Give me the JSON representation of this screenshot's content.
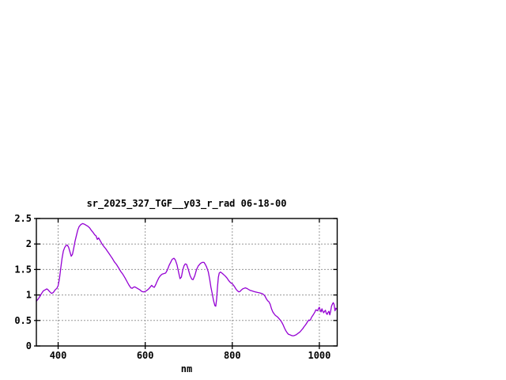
{
  "window": {
    "background": "#ffffff"
  },
  "chart": {
    "line_color": "#9400d3",
    "grid_color": "#989898",
    "border_color": "#000000",
    "text_color": "#000000"
  },
  "chart_data": {
    "type": "line",
    "title": "sr_2025_327_TGF__y03_r_rad 06-18-00",
    "xlabel": "nm",
    "ylabel": "",
    "xlim": [
      350,
      1041
    ],
    "ylim": [
      0,
      2.5
    ],
    "xticks": [
      400,
      600,
      800,
      1000
    ],
    "yticks": [
      0,
      0.5,
      1,
      1.5,
      2,
      2.5
    ],
    "grid": true,
    "legend": "none",
    "series": [
      {
        "name": "sr_2025_327_TGF__y03_r_rad 06-18-00",
        "color": "#9400d3",
        "points": [
          [
            350,
            0.88
          ],
          [
            354,
            0.92
          ],
          [
            358,
            0.97
          ],
          [
            362,
            1.03
          ],
          [
            366,
            1.08
          ],
          [
            370,
            1.1
          ],
          [
            374,
            1.12
          ],
          [
            377,
            1.1
          ],
          [
            381,
            1.06
          ],
          [
            385,
            1.03
          ],
          [
            389,
            1.05
          ],
          [
            393,
            1.1
          ],
          [
            397,
            1.13
          ],
          [
            400,
            1.18
          ],
          [
            403,
            1.32
          ],
          [
            406,
            1.52
          ],
          [
            409,
            1.72
          ],
          [
            412,
            1.86
          ],
          [
            415,
            1.93
          ],
          [
            418,
            1.97
          ],
          [
            421,
            1.98
          ],
          [
            424,
            1.94
          ],
          [
            427,
            1.85
          ],
          [
            430,
            1.76
          ],
          [
            433,
            1.8
          ],
          [
            436,
            1.93
          ],
          [
            439,
            2.06
          ],
          [
            442,
            2.17
          ],
          [
            445,
            2.27
          ],
          [
            448,
            2.34
          ],
          [
            452,
            2.38
          ],
          [
            456,
            2.4
          ],
          [
            460,
            2.39
          ],
          [
            464,
            2.37
          ],
          [
            468,
            2.35
          ],
          [
            472,
            2.32
          ],
          [
            476,
            2.27
          ],
          [
            480,
            2.23
          ],
          [
            484,
            2.18
          ],
          [
            487,
            2.16
          ],
          [
            490,
            2.09
          ],
          [
            493,
            2.12
          ],
          [
            497,
            2.06
          ],
          [
            501,
            2.0
          ],
          [
            505,
            1.95
          ],
          [
            509,
            1.91
          ],
          [
            513,
            1.86
          ],
          [
            517,
            1.81
          ],
          [
            521,
            1.76
          ],
          [
            525,
            1.71
          ],
          [
            529,
            1.65
          ],
          [
            534,
            1.6
          ],
          [
            539,
            1.53
          ],
          [
            544,
            1.46
          ],
          [
            549,
            1.4
          ],
          [
            554,
            1.33
          ],
          [
            559,
            1.25
          ],
          [
            563,
            1.19
          ],
          [
            567,
            1.14
          ],
          [
            570,
            1.13
          ],
          [
            573,
            1.15
          ],
          [
            576,
            1.16
          ],
          [
            580,
            1.14
          ],
          [
            584,
            1.12
          ],
          [
            588,
            1.1
          ],
          [
            592,
            1.07
          ],
          [
            596,
            1.06
          ],
          [
            600,
            1.07
          ],
          [
            604,
            1.09
          ],
          [
            608,
            1.12
          ],
          [
            612,
            1.16
          ],
          [
            615,
            1.19
          ],
          [
            618,
            1.16
          ],
          [
            621,
            1.15
          ],
          [
            624,
            1.2
          ],
          [
            627,
            1.26
          ],
          [
            631,
            1.33
          ],
          [
            635,
            1.38
          ],
          [
            639,
            1.41
          ],
          [
            643,
            1.42
          ],
          [
            647,
            1.43
          ],
          [
            651,
            1.49
          ],
          [
            655,
            1.58
          ],
          [
            659,
            1.65
          ],
          [
            662,
            1.7
          ],
          [
            666,
            1.72
          ],
          [
            669,
            1.69
          ],
          [
            673,
            1.59
          ],
          [
            677,
            1.43
          ],
          [
            680,
            1.32
          ],
          [
            683,
            1.35
          ],
          [
            686,
            1.48
          ],
          [
            689,
            1.57
          ],
          [
            692,
            1.61
          ],
          [
            695,
            1.6
          ],
          [
            699,
            1.5
          ],
          [
            703,
            1.38
          ],
          [
            707,
            1.31
          ],
          [
            710,
            1.3
          ],
          [
            714,
            1.38
          ],
          [
            718,
            1.5
          ],
          [
            722,
            1.57
          ],
          [
            727,
            1.62
          ],
          [
            731,
            1.64
          ],
          [
            735,
            1.64
          ],
          [
            738,
            1.6
          ],
          [
            741,
            1.55
          ],
          [
            745,
            1.45
          ],
          [
            748,
            1.31
          ],
          [
            751,
            1.15
          ],
          [
            754,
            1.02
          ],
          [
            757,
            0.89
          ],
          [
            760,
            0.79
          ],
          [
            762,
            0.78
          ],
          [
            764,
            0.92
          ],
          [
            766,
            1.16
          ],
          [
            768,
            1.35
          ],
          [
            770,
            1.43
          ],
          [
            773,
            1.45
          ],
          [
            776,
            1.43
          ],
          [
            780,
            1.4
          ],
          [
            784,
            1.37
          ],
          [
            788,
            1.33
          ],
          [
            792,
            1.28
          ],
          [
            796,
            1.24
          ],
          [
            800,
            1.22
          ],
          [
            803,
            1.19
          ],
          [
            806,
            1.15
          ],
          [
            809,
            1.11
          ],
          [
            812,
            1.08
          ],
          [
            815,
            1.06
          ],
          [
            818,
            1.07
          ],
          [
            821,
            1.1
          ],
          [
            824,
            1.12
          ],
          [
            827,
            1.13
          ],
          [
            830,
            1.14
          ],
          [
            833,
            1.13
          ],
          [
            837,
            1.11
          ],
          [
            841,
            1.09
          ],
          [
            845,
            1.08
          ],
          [
            849,
            1.07
          ],
          [
            853,
            1.06
          ],
          [
            858,
            1.05
          ],
          [
            863,
            1.04
          ],
          [
            868,
            1.03
          ],
          [
            872,
            1.01
          ],
          [
            875,
            0.98
          ],
          [
            878,
            0.93
          ],
          [
            881,
            0.89
          ],
          [
            884,
            0.87
          ],
          [
            887,
            0.82
          ],
          [
            890,
            0.73
          ],
          [
            893,
            0.67
          ],
          [
            896,
            0.63
          ],
          [
            899,
            0.6
          ],
          [
            902,
            0.58
          ],
          [
            905,
            0.56
          ],
          [
            908,
            0.53
          ],
          [
            911,
            0.5
          ],
          [
            914,
            0.46
          ],
          [
            917,
            0.41
          ],
          [
            920,
            0.35
          ],
          [
            923,
            0.3
          ],
          [
            926,
            0.26
          ],
          [
            929,
            0.23
          ],
          [
            932,
            0.22
          ],
          [
            935,
            0.21
          ],
          [
            938,
            0.2
          ],
          [
            941,
            0.2
          ],
          [
            944,
            0.21
          ],
          [
            947,
            0.22
          ],
          [
            950,
            0.24
          ],
          [
            953,
            0.26
          ],
          [
            956,
            0.28
          ],
          [
            959,
            0.31
          ],
          [
            962,
            0.34
          ],
          [
            965,
            0.38
          ],
          [
            968,
            0.41
          ],
          [
            971,
            0.45
          ],
          [
            974,
            0.49
          ],
          [
            976,
            0.51
          ],
          [
            978,
            0.5
          ],
          [
            980,
            0.52
          ],
          [
            982,
            0.56
          ],
          [
            985,
            0.6
          ],
          [
            988,
            0.64
          ],
          [
            990,
            0.67
          ],
          [
            992,
            0.71
          ],
          [
            994,
            0.7
          ],
          [
            996,
            0.69
          ],
          [
            998,
            0.73
          ],
          [
            1000,
            0.76
          ],
          [
            1002,
            0.7
          ],
          [
            1004,
            0.67
          ],
          [
            1006,
            0.73
          ],
          [
            1008,
            0.68
          ],
          [
            1010,
            0.65
          ],
          [
            1012,
            0.68
          ],
          [
            1014,
            0.7
          ],
          [
            1016,
            0.64
          ],
          [
            1018,
            0.62
          ],
          [
            1020,
            0.66
          ],
          [
            1022,
            0.68
          ],
          [
            1024,
            0.61
          ],
          [
            1026,
            0.68
          ],
          [
            1028,
            0.78
          ],
          [
            1030,
            0.82
          ],
          [
            1032,
            0.85
          ],
          [
            1034,
            0.81
          ],
          [
            1036,
            0.69
          ],
          [
            1038,
            0.74
          ],
          [
            1040,
            0.72
          ]
        ]
      }
    ]
  }
}
